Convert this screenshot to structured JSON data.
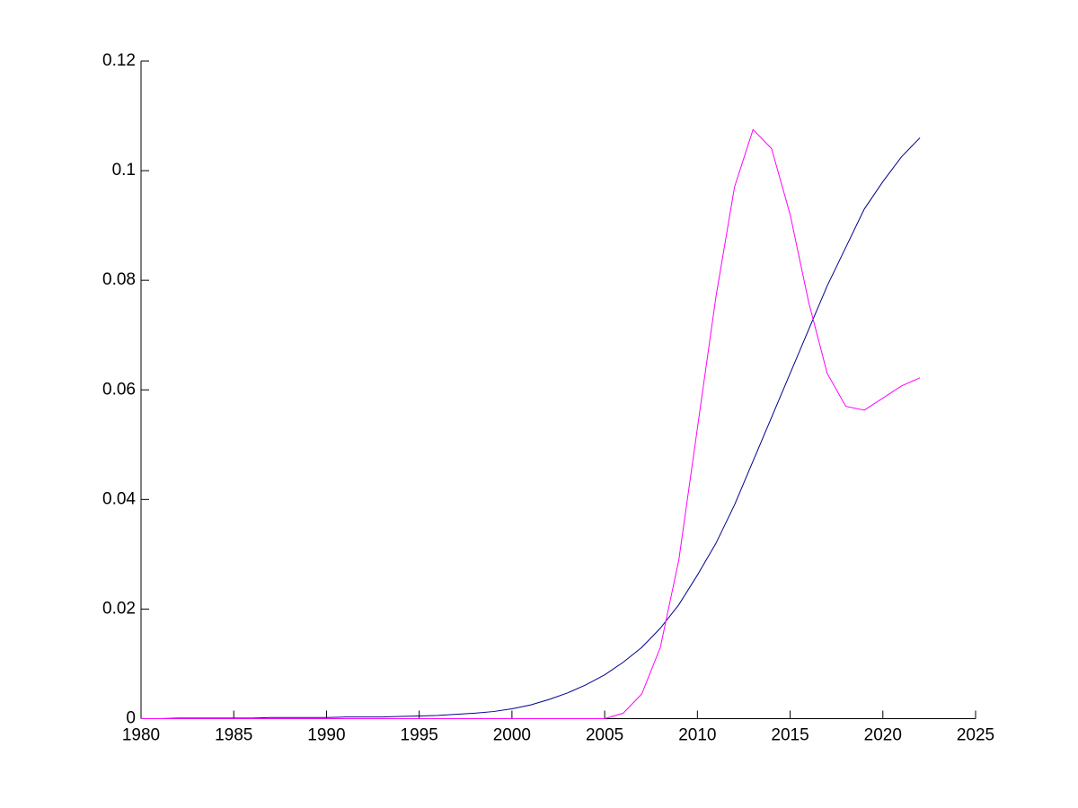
{
  "chart_data": {
    "type": "line",
    "x": [
      1980,
      1981,
      1982,
      1983,
      1984,
      1985,
      1986,
      1987,
      1988,
      1989,
      1990,
      1991,
      1992,
      1993,
      1994,
      1995,
      1996,
      1997,
      1998,
      1999,
      2000,
      2001,
      2002,
      2003,
      2004,
      2005,
      2006,
      2007,
      2008,
      2009,
      2010,
      2011,
      2012,
      2013,
      2014,
      2015,
      2016,
      2017,
      2018,
      2019,
      2020,
      2021,
      2022
    ],
    "series": [
      {
        "color": "#00008b",
        "values": [
          0,
          0,
          0.0001,
          0.0001,
          0.0001,
          0.0001,
          0.0001,
          0.0002,
          0.0002,
          0.0002,
          0.0002,
          0.0003,
          0.0003,
          0.0003,
          0.0004,
          0.0005,
          0.0006,
          0.0008,
          0.001,
          0.0013,
          0.0018,
          0.0025,
          0.0035,
          0.0047,
          0.0062,
          0.008,
          0.0103,
          0.013,
          0.0165,
          0.0208,
          0.0262,
          0.032,
          0.039,
          0.047,
          0.055,
          0.063,
          0.071,
          0.079,
          0.086,
          0.093,
          0.098,
          0.1025,
          0.106
        ]
      },
      {
        "color": "#ff00ff",
        "values": [
          0,
          0,
          0,
          0,
          0,
          0,
          0,
          0,
          0,
          0,
          0,
          0,
          0,
          0,
          0,
          0,
          0,
          0,
          0,
          0,
          0,
          0,
          0,
          0,
          0,
          0,
          0.001,
          0.0045,
          0.013,
          0.029,
          0.053,
          0.077,
          0.097,
          0.1075,
          0.104,
          0.092,
          0.076,
          0.063,
          0.057,
          0.0563,
          0.0585,
          0.0607,
          0.0622
        ]
      }
    ],
    "xlim": [
      1980,
      2025
    ],
    "xticks": [
      1980,
      1985,
      1990,
      1995,
      2000,
      2005,
      2010,
      2015,
      2020,
      2025
    ],
    "ylim": [
      0,
      0.12
    ],
    "yticks": [
      0,
      0.02,
      0.04,
      0.06,
      0.08,
      0.1,
      0.12
    ]
  }
}
